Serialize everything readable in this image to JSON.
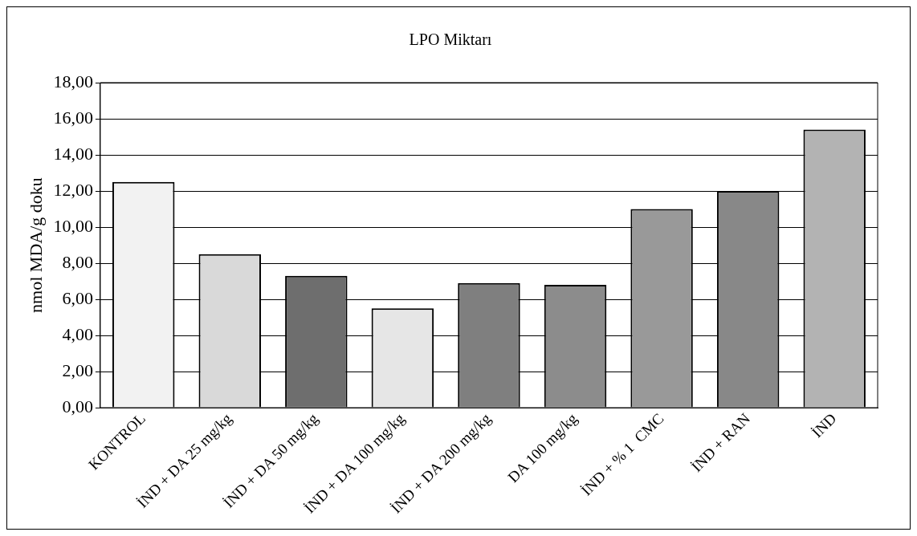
{
  "chart_data": {
    "type": "bar",
    "title": "LPO Miktarı",
    "ylabel": "nmol MDA/g doku",
    "categories": [
      "KONTROL",
      "İND + DA 25 mg/kg",
      "İND + DA 50 mg/kg",
      "İND + DA 100 mg/kg",
      "İND + DA 200 mg/kg",
      "DA 100 mg/kg",
      "İND + % 1  CMC",
      "İND + RAN",
      "İND"
    ],
    "values": [
      12.5,
      8.5,
      7.3,
      5.5,
      6.9,
      6.8,
      11.0,
      12.0,
      15.4
    ],
    "colors": [
      "#f2f2f2",
      "#d9d9d9",
      "#6e6e6e",
      "#e6e6e6",
      "#7f7f7f",
      "#8c8c8c",
      "#999999",
      "#888888",
      "#b3b3b3"
    ],
    "ylim": [
      0,
      18
    ],
    "yticks": [
      {
        "value": 0,
        "label": "0,00"
      },
      {
        "value": 2,
        "label": "2,00"
      },
      {
        "value": 4,
        "label": "4,00"
      },
      {
        "value": 6,
        "label": "6,00"
      },
      {
        "value": 8,
        "label": "8,00"
      },
      {
        "value": 10,
        "label": "10,00"
      },
      {
        "value": 12,
        "label": "12,00"
      },
      {
        "value": 14,
        "label": "14,00"
      },
      {
        "value": 16,
        "label": "16,00"
      },
      {
        "value": 18,
        "label": "18,00"
      }
    ],
    "grid": "y",
    "legend": false
  }
}
